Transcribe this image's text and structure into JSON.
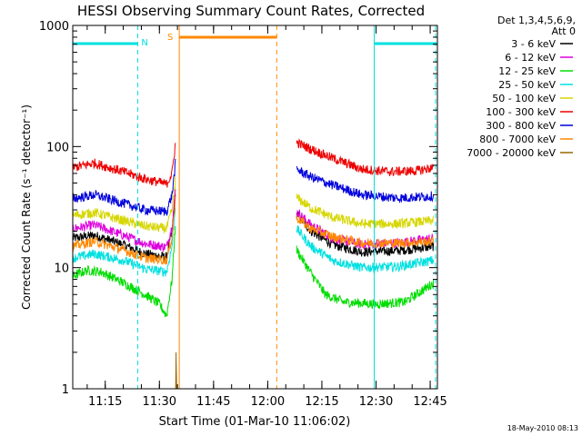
{
  "chart_data": {
    "type": "line",
    "title": "HESSI Observing Summary Count Rates, Corrected",
    "xlabel": "Start Time (01-Mar-10 11:06:02)",
    "ylabel": "Corrected Count Rate (s⁻¹ detector⁻¹)",
    "yscale": "log",
    "ylim": [
      1,
      1000
    ],
    "xlim_minutes": [
      0,
      101
    ],
    "x_ticks": [
      {
        "m": 9,
        "label": "11:15"
      },
      {
        "m": 24,
        "label": "11:30"
      },
      {
        "m": 39,
        "label": "11:45"
      },
      {
        "m": 54,
        "label": "12:00"
      },
      {
        "m": 69,
        "label": "12:15"
      },
      {
        "m": 84,
        "label": "12:30"
      },
      {
        "m": 99,
        "label": "12:45"
      }
    ],
    "y_ticks": [
      {
        "v": 1,
        "label": "1"
      },
      {
        "v": 10,
        "label": "10"
      },
      {
        "v": 100,
        "label": "100"
      },
      {
        "v": 1000,
        "label": "1000"
      }
    ],
    "legend_header": [
      "Det 1,3,4,5,6,9,",
      "Att 0"
    ],
    "legend_position": "right",
    "timestamp": "18-May-2010 08:13",
    "series": [
      {
        "name": "3 - 6 keV",
        "color": "#000000",
        "pre": [
          [
            0,
            17.5
          ],
          [
            6,
            18.5
          ],
          [
            14,
            15.5
          ],
          [
            20,
            13
          ],
          [
            26,
            12.2
          ],
          [
            27.5,
            20
          ],
          [
            28.5,
            40
          ]
        ],
        "post": [
          [
            62,
            28
          ],
          [
            66,
            20
          ],
          [
            72,
            15.5
          ],
          [
            80,
            13.5
          ],
          [
            90,
            13.8
          ],
          [
            100,
            15
          ]
        ]
      },
      {
        "name": "6 - 12 keV",
        "color": "#dd00dd",
        "pre": [
          [
            0,
            21
          ],
          [
            6,
            22.5
          ],
          [
            14,
            18.5
          ],
          [
            20,
            15.8
          ],
          [
            26,
            14.8
          ],
          [
            27.5,
            22
          ],
          [
            28.5,
            45
          ]
        ],
        "post": [
          [
            62,
            29
          ],
          [
            66,
            22.5
          ],
          [
            72,
            17.5
          ],
          [
            80,
            15.5
          ],
          [
            90,
            16
          ],
          [
            100,
            17.5
          ]
        ]
      },
      {
        "name": "12 - 25 keV",
        "color": "#00dd00",
        "pre": [
          [
            0,
            8.5
          ],
          [
            4,
            9.5
          ],
          [
            8,
            9.2
          ],
          [
            14,
            7.5
          ],
          [
            20,
            6
          ],
          [
            24,
            5
          ],
          [
            26,
            4
          ],
          [
            27.5,
            8
          ],
          [
            28.5,
            25
          ]
        ],
        "post": [
          [
            62,
            14
          ],
          [
            66,
            9
          ],
          [
            70,
            6
          ],
          [
            75,
            5.2
          ],
          [
            84,
            5
          ],
          [
            92,
            5.2
          ],
          [
            100,
            7.5
          ]
        ]
      },
      {
        "name": "25 - 50 keV",
        "color": "#00e0e0",
        "pre": [
          [
            0,
            12
          ],
          [
            6,
            13
          ],
          [
            14,
            11.5
          ],
          [
            20,
            9.8
          ],
          [
            26,
            9.2
          ],
          [
            27.5,
            15
          ],
          [
            28.5,
            35
          ]
        ],
        "post": [
          [
            62,
            21
          ],
          [
            66,
            15
          ],
          [
            72,
            11.5
          ],
          [
            80,
            10
          ],
          [
            90,
            10.2
          ],
          [
            100,
            11.5
          ]
        ]
      },
      {
        "name": "50 - 100 keV",
        "color": "#d6d600",
        "pre": [
          [
            0,
            27
          ],
          [
            6,
            28.5
          ],
          [
            14,
            24.5
          ],
          [
            20,
            22
          ],
          [
            26,
            21
          ],
          [
            27.5,
            30
          ],
          [
            28.5,
            55
          ]
        ],
        "post": [
          [
            62,
            38
          ],
          [
            66,
            31
          ],
          [
            72,
            26
          ],
          [
            80,
            23
          ],
          [
            90,
            23
          ],
          [
            100,
            24.5
          ]
        ]
      },
      {
        "name": "100 - 300 keV",
        "color": "#ee0000",
        "pre": [
          [
            0,
            67
          ],
          [
            6,
            73
          ],
          [
            14,
            62
          ],
          [
            20,
            54
          ],
          [
            26,
            49
          ],
          [
            27.5,
            60
          ],
          [
            28.5,
            110
          ]
        ],
        "post": [
          [
            62,
            108
          ],
          [
            66,
            95
          ],
          [
            72,
            80
          ],
          [
            80,
            65
          ],
          [
            88,
            62
          ],
          [
            95,
            63
          ],
          [
            100,
            67
          ]
        ]
      },
      {
        "name": "300 - 800 keV",
        "color": "#0000dd",
        "pre": [
          [
            0,
            37
          ],
          [
            6,
            40
          ],
          [
            14,
            34
          ],
          [
            20,
            30
          ],
          [
            26,
            29
          ],
          [
            27.5,
            40
          ],
          [
            28.5,
            75
          ]
        ],
        "post": [
          [
            62,
            65
          ],
          [
            66,
            56
          ],
          [
            72,
            48
          ],
          [
            80,
            40
          ],
          [
            90,
            37.5
          ],
          [
            100,
            39
          ]
        ]
      },
      {
        "name": "800 - 7000 keV",
        "color": "#ff8800",
        "pre": [
          [
            0,
            15
          ],
          [
            6,
            16.5
          ],
          [
            14,
            14
          ],
          [
            20,
            12
          ],
          [
            26,
            11.5
          ],
          [
            27.5,
            18
          ],
          [
            28.5,
            38
          ]
        ],
        "post": [
          [
            62,
            26
          ],
          [
            66,
            21
          ],
          [
            72,
            18
          ],
          [
            80,
            16
          ],
          [
            90,
            16
          ],
          [
            100,
            16.5
          ]
        ]
      },
      {
        "name": "7000 - 20000 keV",
        "color": "#996600",
        "pre": [
          [
            28.5,
            1
          ],
          [
            28.6,
            2
          ],
          [
            28.8,
            1
          ]
        ],
        "post": []
      }
    ],
    "flags": [
      {
        "label": "N",
        "color": "#00e0e0"
      },
      {
        "label": "S",
        "color": "#ff8800"
      }
    ]
  }
}
